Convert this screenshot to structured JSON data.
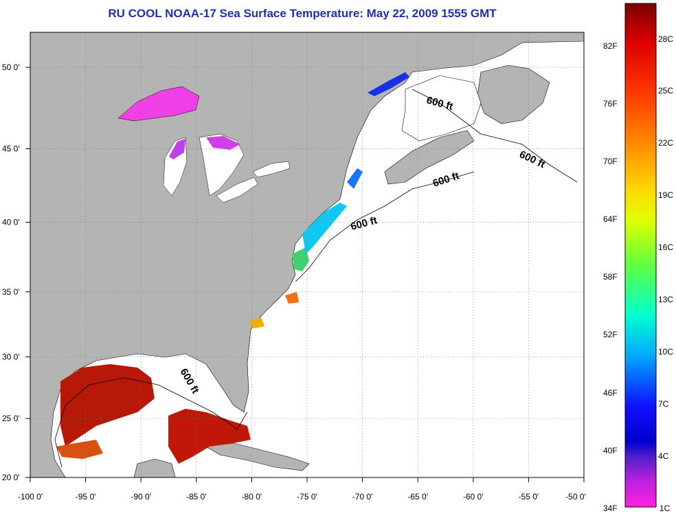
{
  "title": "RU COOL  NOAA-17  Sea Surface Temperature:  May 22, 2009 1555 GMT",
  "map": {
    "longitude_labels": [
      "-100 0'",
      "-95 0'",
      "-90 0'",
      "-85 0'",
      "-80 0'",
      "-75 0'",
      "-70 0'",
      "-65 0'",
      "-60 0'",
      "-55 0'",
      "-50 0'"
    ],
    "latitude_labels": [
      "50 0'",
      "45 0'",
      "40 0'",
      "35 0'",
      "30 0'",
      "25 0'",
      "20 0'"
    ],
    "isobath_labels": [
      "600 ft",
      "600 ft",
      "600 ft",
      "600 ft",
      "600 ft"
    ],
    "land_color": "#b4b4b4",
    "ocean_color": "#ffffff"
  },
  "colorbar": {
    "fahrenheit_labels": [
      "82F",
      "76F",
      "70F",
      "64F",
      "58F",
      "52F",
      "46F",
      "40F",
      "34F"
    ],
    "celsius_labels": [
      "28C",
      "25C",
      "22C",
      "19C",
      "16C",
      "13C",
      "10C",
      "7C",
      "4C",
      "1C"
    ]
  }
}
